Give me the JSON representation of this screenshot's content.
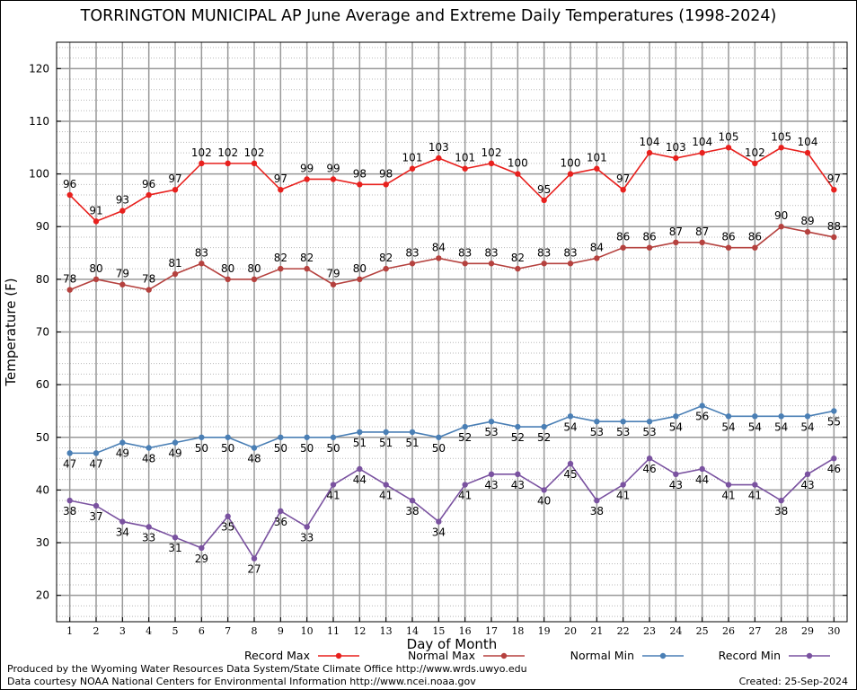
{
  "chart_data": {
    "type": "line",
    "title": "TORRINGTON MUNICIPAL AP June Average and Extreme Daily Temperatures (1998-2024)",
    "xlabel": "Day of Month",
    "ylabel": "Temperature (F)",
    "ylim": [
      15,
      125
    ],
    "xlim": [
      0.5,
      30.5
    ],
    "yticks": [
      20,
      30,
      40,
      50,
      60,
      70,
      80,
      90,
      100,
      110,
      120
    ],
    "x": [
      1,
      2,
      3,
      4,
      5,
      6,
      7,
      8,
      9,
      10,
      11,
      12,
      13,
      14,
      15,
      16,
      17,
      18,
      19,
      20,
      21,
      22,
      23,
      24,
      25,
      26,
      27,
      28,
      29,
      30
    ],
    "grid": true,
    "legend_position": "bottom",
    "series": [
      {
        "name": "Record Max",
        "color": "#e8201d",
        "label_pos": "above",
        "values": [
          96,
          91,
          93,
          96,
          97,
          102,
          102,
          102,
          97,
          99,
          99,
          98,
          98,
          101,
          103,
          101,
          102,
          100,
          95,
          100,
          101,
          97,
          104,
          103,
          104,
          105,
          102,
          105,
          104,
          97
        ]
      },
      {
        "name": "Normal Max",
        "color": "#b5413e",
        "label_pos": "above",
        "values": [
          78,
          80,
          79,
          78,
          81,
          83,
          80,
          80,
          82,
          82,
          79,
          80,
          82,
          83,
          84,
          83,
          83,
          82,
          83,
          83,
          84,
          86,
          86,
          87,
          87,
          86,
          86,
          90,
          89,
          88
        ]
      },
      {
        "name": "Normal Min",
        "color": "#4a7fb5",
        "label_pos": "below",
        "values": [
          47,
          47,
          49,
          48,
          49,
          50,
          50,
          48,
          50,
          50,
          50,
          51,
          51,
          51,
          50,
          52,
          53,
          52,
          52,
          54,
          53,
          53,
          53,
          54,
          56,
          54,
          54,
          54,
          54,
          55
        ]
      },
      {
        "name": "Record Min",
        "color": "#7a52a0",
        "label_pos": "below",
        "values": [
          38,
          37,
          34,
          33,
          31,
          29,
          35,
          27,
          36,
          33,
          41,
          44,
          41,
          38,
          34,
          41,
          43,
          43,
          40,
          45,
          38,
          41,
          46,
          43,
          44,
          41,
          41,
          38,
          43,
          46
        ]
      }
    ]
  },
  "footer": {
    "produced_by": "Produced by the Wyoming Water Resources Data System/State Climate Office http://www.wrds.uwyo.edu",
    "courtesy": "Data courtesy NOAA National Centers for Environmental Information http://www.ncei.noaa.gov",
    "created": "Created:  25-Sep-2024"
  }
}
